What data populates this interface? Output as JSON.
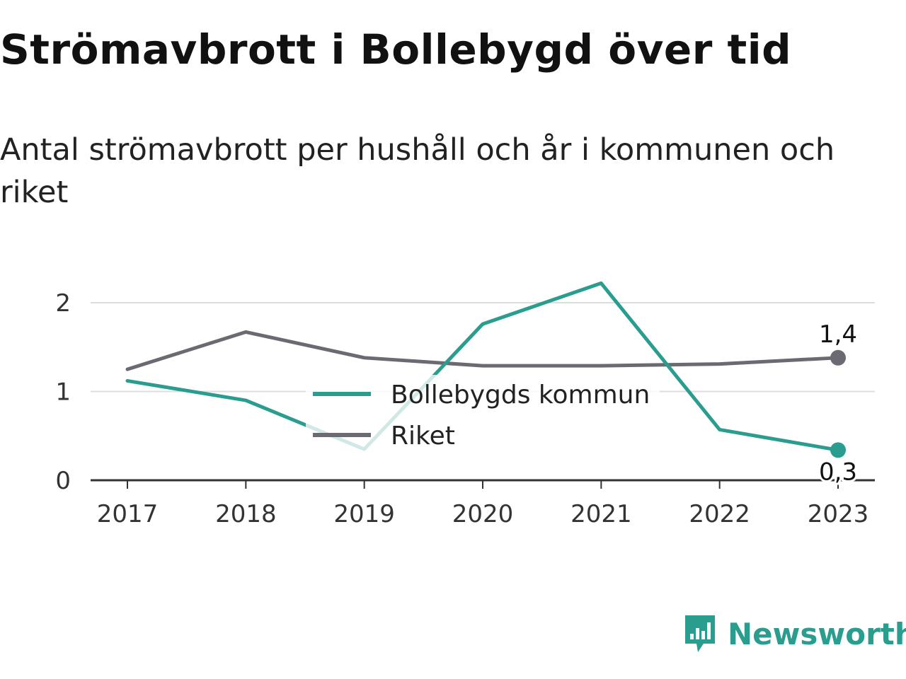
{
  "chart_data": {
    "type": "line",
    "title": "Strömavbrott i Bollebygd över tid",
    "subtitle": "Antal strömavbrott per hushåll och år i kommunen och riket",
    "x": [
      "2017",
      "2018",
      "2019",
      "2020",
      "2021",
      "2022",
      "2023"
    ],
    "ylim": [
      0,
      2.4
    ],
    "yticks": [
      0,
      1,
      2
    ],
    "ytick_labels": [
      "0",
      "1",
      "2"
    ],
    "grid": true,
    "legend_position": "center",
    "series": [
      {
        "name": "Bollebygds kommun",
        "color": "#2a9d8f",
        "values": [
          1.12,
          0.9,
          0.35,
          1.76,
          2.22,
          0.57,
          0.34
        ],
        "end_label": "0,3"
      },
      {
        "name": "Riket",
        "color": "#6b6a73",
        "values": [
          1.25,
          1.67,
          1.38,
          1.29,
          1.29,
          1.31,
          1.38
        ],
        "end_label": "1,4"
      }
    ]
  },
  "brand": {
    "name": "Newsworthy",
    "icon": "newsworthy-logo-icon",
    "color": "#2a9d8f"
  }
}
